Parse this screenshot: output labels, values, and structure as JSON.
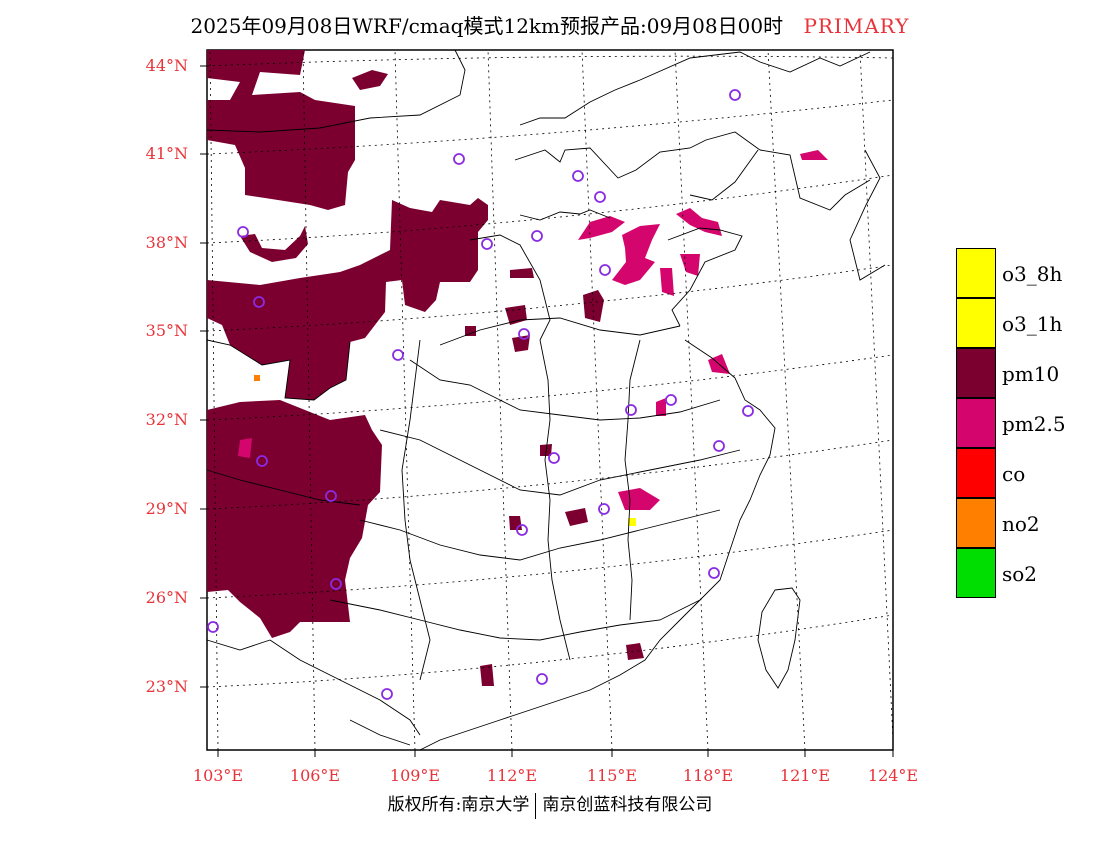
{
  "title": {
    "main": "2025年09月08日WRF/cmaq模式12km预报产品:09月08日00时",
    "tag": "PRIMARY"
  },
  "axes": {
    "lat_labels": [
      "44°N",
      "41°N",
      "38°N",
      "35°N",
      "32°N",
      "29°N",
      "26°N",
      "23°N"
    ],
    "lon_labels": [
      "103°E",
      "106°E",
      "109°E",
      "112°E",
      "115°E",
      "118°E",
      "121°E",
      "124°E"
    ]
  },
  "legend": {
    "items": [
      {
        "label": "o3_8h",
        "color": "#ffff00"
      },
      {
        "label": "o3_1h",
        "color": "#ffff00"
      },
      {
        "label": "pm10",
        "color": "#7b0030"
      },
      {
        "label": "pm2.5",
        "color": "#d4066e"
      },
      {
        "label": "co",
        "color": "#ff0000"
      },
      {
        "label": "no2",
        "color": "#ff7f00"
      },
      {
        "label": "so2",
        "color": "#00dd00"
      }
    ]
  },
  "colors": {
    "pm10": "#7b0030",
    "pm25": "#d4066e",
    "station": "#8a2be2",
    "axis_labels": "#e8333a"
  },
  "footer": {
    "left": "版权所有:南京大学",
    "right": "南京创蓝科技有限公司"
  }
}
